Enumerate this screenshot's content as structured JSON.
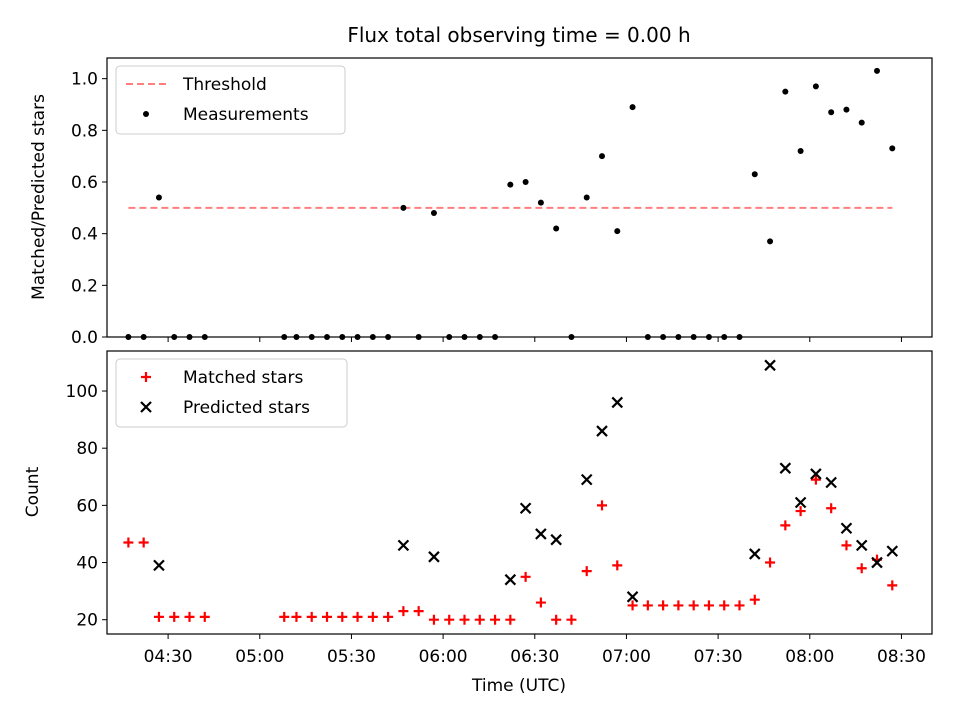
{
  "title": "Flux total observing time = 0.00 h",
  "xlabel": "Time (UTC)",
  "x_ticks": [
    "04:30",
    "05:00",
    "05:30",
    "06:00",
    "06:30",
    "07:00",
    "07:30",
    "08:00",
    "08:30"
  ],
  "chart_data": [
    {
      "type": "scatter",
      "ylabel": "Matched/Predicted stars",
      "xlim": [
        "04:10",
        "08:40"
      ],
      "ylim": [
        0,
        1.08
      ],
      "y_ticks": [
        "0.0",
        "0.2",
        "0.4",
        "0.6",
        "0.8",
        "1.0"
      ],
      "legend_position": "top-left",
      "legend": [
        "Threshold",
        "Measurements"
      ],
      "threshold": {
        "name": "Threshold",
        "value": 0.5,
        "x_range": [
          "04:17",
          "08:27"
        ],
        "color": "#ff7f7f",
        "style": "dashed"
      },
      "series": [
        {
          "name": "Measurements",
          "color": "#000000",
          "x": [
            "04:17",
            "04:22",
            "04:27",
            "04:32",
            "04:37",
            "04:42",
            "05:08",
            "05:12",
            "05:17",
            "05:22",
            "05:27",
            "05:32",
            "05:37",
            "05:42",
            "05:47",
            "05:52",
            "05:57",
            "06:02",
            "06:07",
            "06:12",
            "06:17",
            "06:22",
            "06:27",
            "06:32",
            "06:37",
            "06:42",
            "06:47",
            "06:52",
            "06:57",
            "07:02",
            "07:07",
            "07:12",
            "07:17",
            "07:22",
            "07:27",
            "07:32",
            "07:37",
            "07:42",
            "07:47",
            "07:52",
            "07:57",
            "08:02",
            "08:07",
            "08:12",
            "08:17",
            "08:22",
            "08:27"
          ],
          "y": [
            0,
            0,
            0.54,
            0,
            0,
            0,
            0,
            0,
            0,
            0,
            0,
            0,
            0,
            0,
            0.5,
            0,
            0.48,
            0,
            0,
            0,
            0,
            0.59,
            0.6,
            0.52,
            0.42,
            0,
            0.54,
            0.7,
            0.41,
            0.89,
            0,
            0,
            0,
            0,
            0,
            0,
            0,
            0.63,
            0.37,
            0.95,
            0.72,
            0.97,
            0.87,
            0.88,
            0.83,
            1.03,
            0.73
          ]
        }
      ]
    },
    {
      "type": "scatter",
      "ylabel": "Count",
      "xlim": [
        "04:10",
        "08:40"
      ],
      "ylim": [
        15,
        114
      ],
      "y_ticks": [
        "20",
        "40",
        "60",
        "80",
        "100"
      ],
      "legend_position": "top-left",
      "legend": [
        "Matched stars",
        "Predicted stars"
      ],
      "series": [
        {
          "name": "Matched stars",
          "color": "#ff0000",
          "marker": "+",
          "x": [
            "04:17",
            "04:22",
            "04:27",
            "04:32",
            "04:37",
            "04:42",
            "05:08",
            "05:12",
            "05:17",
            "05:22",
            "05:27",
            "05:32",
            "05:37",
            "05:42",
            "05:47",
            "05:52",
            "05:57",
            "06:02",
            "06:07",
            "06:12",
            "06:17",
            "06:22",
            "06:27",
            "06:32",
            "06:37",
            "06:42",
            "06:47",
            "06:52",
            "06:57",
            "07:02",
            "07:07",
            "07:12",
            "07:17",
            "07:22",
            "07:27",
            "07:32",
            "07:37",
            "07:42",
            "07:47",
            "07:52",
            "07:57",
            "08:02",
            "08:07",
            "08:12",
            "08:17",
            "08:22",
            "08:27"
          ],
          "y": [
            47,
            47,
            21,
            21,
            21,
            21,
            21,
            21,
            21,
            21,
            21,
            21,
            21,
            21,
            23,
            23,
            20,
            20,
            20,
            20,
            20,
            20,
            35,
            26,
            20,
            20,
            37,
            60,
            39,
            25,
            25,
            25,
            25,
            25,
            25,
            25,
            25,
            27,
            40,
            53,
            58,
            69,
            59,
            46,
            38,
            41,
            32
          ]
        },
        {
          "name": "Predicted stars",
          "color": "#000000",
          "marker": "x",
          "x": [
            "04:27",
            "05:47",
            "05:57",
            "06:22",
            "06:27",
            "06:32",
            "06:37",
            "06:47",
            "06:52",
            "06:57",
            "07:02",
            "07:42",
            "07:47",
            "07:52",
            "07:57",
            "08:02",
            "08:07",
            "08:12",
            "08:17",
            "08:22",
            "08:27"
          ],
          "y": [
            39,
            46,
            42,
            34,
            59,
            50,
            48,
            69,
            86,
            96,
            28,
            43,
            109,
            73,
            61,
            71,
            68,
            52,
            46,
            40,
            44
          ]
        }
      ]
    }
  ]
}
